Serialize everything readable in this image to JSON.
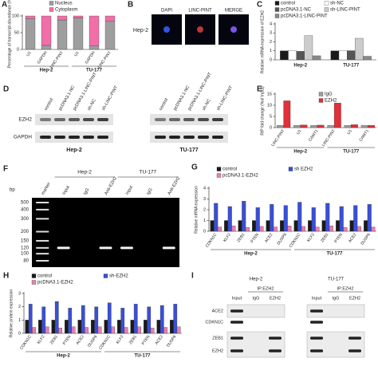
{
  "chart_data": [
    {
      "panel": "A",
      "type": "bar",
      "stacked": true,
      "ylabel": "Percentage of transcript abundance (%)",
      "groups": [
        {
          "label": "Hep-2",
          "categories": [
            "U1",
            "GAPDH",
            "LINC-PINT"
          ]
        },
        {
          "label": "TU-177",
          "categories": [
            "U1",
            "GAPDH",
            "LINC-PINT"
          ]
        }
      ],
      "series": [
        {
          "name": "Nucleus",
          "color": "#9e9e9e",
          "values": [
            92,
            12,
            88,
            94,
            10,
            85
          ]
        },
        {
          "name": "Cytoplasm",
          "color": "#f06fa7",
          "values": [
            8,
            88,
            12,
            6,
            90,
            15
          ]
        }
      ],
      "ylim": [
        0,
        100
      ],
      "yticks": [
        0,
        50,
        100
      ]
    },
    {
      "panel": "C",
      "type": "bar",
      "ylabel": "Relative mRNA expression of EZH2",
      "groups": [
        {
          "label": "Hep-2"
        },
        {
          "label": "TU-177"
        }
      ],
      "series": [
        {
          "name": "control",
          "color": "#1a1a1a",
          "values": [
            1,
            1
          ]
        },
        {
          "name": "sh-NC",
          "color": "#ffffff",
          "values": [
            1.05,
            1.0
          ]
        },
        {
          "name": "pcDNA3.1-NC",
          "color": "#555555",
          "values": [
            0.95,
            1.02
          ]
        },
        {
          "name": "sh-LINC-PINT",
          "color": "#cccccc",
          "values": [
            2.7,
            2.4
          ]
        },
        {
          "name": "pcDNA3.1-LINC-PINT",
          "color": "#8a8a8a",
          "values": [
            0.45,
            0.4
          ]
        }
      ],
      "ylim": [
        0,
        4
      ],
      "yticks": [
        0,
        1,
        2,
        3,
        4
      ]
    },
    {
      "panel": "E",
      "type": "bar",
      "ylabel": "RIP fold change (%of Input)",
      "groups": [
        {
          "label": "Hep-2",
          "categories": [
            "LINC-PINT",
            "U1",
            "CAMT1"
          ]
        },
        {
          "label": "TU-177",
          "categories": [
            "LINC-PINT",
            "U1",
            "CAMT1"
          ]
        }
      ],
      "series": [
        {
          "name": "IgG",
          "color": "#9e9e9e",
          "values": [
            1,
            1,
            1,
            1,
            1,
            1
          ]
        },
        {
          "name": "EZH2",
          "color": "#e0303a",
          "values": [
            12,
            1.2,
            1.1,
            11,
            1.3,
            1.0
          ]
        }
      ],
      "ylim": [
        0,
        15
      ],
      "yticks": [
        0,
        5,
        10,
        15
      ]
    },
    {
      "panel": "G",
      "type": "bar",
      "ylabel": "Relative mRNA expression",
      "groups": [
        {
          "label": "Hep-2",
          "categories": [
            "CDKN1C",
            "KLF2",
            "ZEB1",
            "PTEN",
            "ACE2",
            "DUSP6"
          ]
        },
        {
          "label": "TU-177",
          "categories": [
            "CDKN1C",
            "KLF2",
            "ZEB1",
            "PTEN",
            "ACE2",
            "DUSP6"
          ]
        }
      ],
      "series": [
        {
          "name": "control",
          "color": "#1a1a1a",
          "values": [
            1,
            1,
            1,
            1,
            1,
            1,
            1,
            1,
            1,
            1,
            1,
            1
          ]
        },
        {
          "name": "sh EZH2",
          "color": "#3a4fd6",
          "values": [
            2.6,
            2.3,
            2.8,
            2.2,
            2.5,
            2.4,
            2.7,
            2.2,
            2.6,
            2.3,
            2.4,
            2.5
          ]
        },
        {
          "name": "pcDNA3.1-EZH2",
          "color": "#e87fb0",
          "values": [
            0.4,
            0.5,
            0.35,
            0.45,
            0.4,
            0.5,
            0.45,
            0.4,
            0.5,
            0.35,
            0.45,
            0.4
          ]
        }
      ],
      "ylim": [
        0,
        4
      ],
      "yticks": [
        0,
        1,
        2,
        3,
        4
      ]
    },
    {
      "panel": "H",
      "type": "bar",
      "ylabel": "Relative protein expression",
      "groups": [
        {
          "label": "Hep-2",
          "categories": [
            "CDKN1C",
            "KLF2",
            "ZEB1",
            "PTEN",
            "ACE2",
            "DUSP6"
          ]
        },
        {
          "label": "TU-177",
          "categories": [
            "CDKN1C",
            "KLF2",
            "ZEB1",
            "PTEN",
            "ACE2",
            "DUSP6"
          ]
        }
      ],
      "series": [
        {
          "name": "control",
          "color": "#1a1a1a",
          "values": [
            1,
            1,
            1,
            1,
            1,
            1,
            1,
            1,
            1,
            1,
            1,
            1
          ]
        },
        {
          "name": "sh-EZH2",
          "color": "#3a4fd6",
          "values": [
            2.2,
            2.0,
            2.4,
            1.9,
            2.1,
            2.0,
            2.3,
            1.9,
            2.2,
            2.0,
            2.1,
            2.2
          ]
        },
        {
          "name": "pcDNA3.1-EZH2",
          "color": "#e87fb0",
          "values": [
            0.45,
            0.5,
            0.4,
            0.5,
            0.45,
            0.5,
            0.5,
            0.45,
            0.5,
            0.4,
            0.45,
            0.5
          ]
        }
      ],
      "ylim": [
        0,
        3
      ],
      "yticks": [
        0,
        1,
        2,
        3
      ]
    }
  ],
  "panels": {
    "B": {
      "panel": "B",
      "cell": "Hep-2",
      "channels": [
        "DAPI",
        "LINC-PINT",
        "MERGE"
      ]
    },
    "D": {
      "panel": "D",
      "rows": [
        "EZH2",
        "GAPDH"
      ],
      "groups": [
        {
          "label": "Hep-2",
          "lanes": [
            "control",
            "pcDNA3.1-NC",
            "pcDNA3.1-LINC-PINT",
            "sh-NC",
            "sh-LINC-PINT"
          ]
        },
        {
          "label": "TU-177",
          "lanes": [
            "control",
            "pcDNA3.1-NC",
            "pcDNA3.1-LINC-PINT",
            "sh-NC",
            "sh-LINC-PINT"
          ]
        }
      ]
    },
    "F": {
      "panel": "F",
      "unit": "bp",
      "marker": "marker",
      "ladder": [
        500,
        400,
        300,
        200,
        150,
        120,
        100,
        80
      ],
      "groups": [
        {
          "label": "Hep-2",
          "lanes": [
            "Input",
            "IgG",
            "Anti-EZH2"
          ]
        },
        {
          "label": "TU-177",
          "lanes": [
            "Input",
            "IgG",
            "Anti-EZH2"
          ]
        }
      ]
    },
    "I": {
      "panel": "I",
      "rows": [
        "ACE2",
        "CDKN1C",
        "ZEB1",
        "EZH2"
      ],
      "groups": [
        {
          "label": "Hep-2",
          "ip": "IP:EZH2",
          "lanes": [
            "Input",
            "IgG",
            "EZH2"
          ]
        },
        {
          "label": "TU-177",
          "ip": "IP:EZH2",
          "lanes": [
            "Input",
            "IgG",
            "EZH2"
          ]
        }
      ]
    }
  }
}
